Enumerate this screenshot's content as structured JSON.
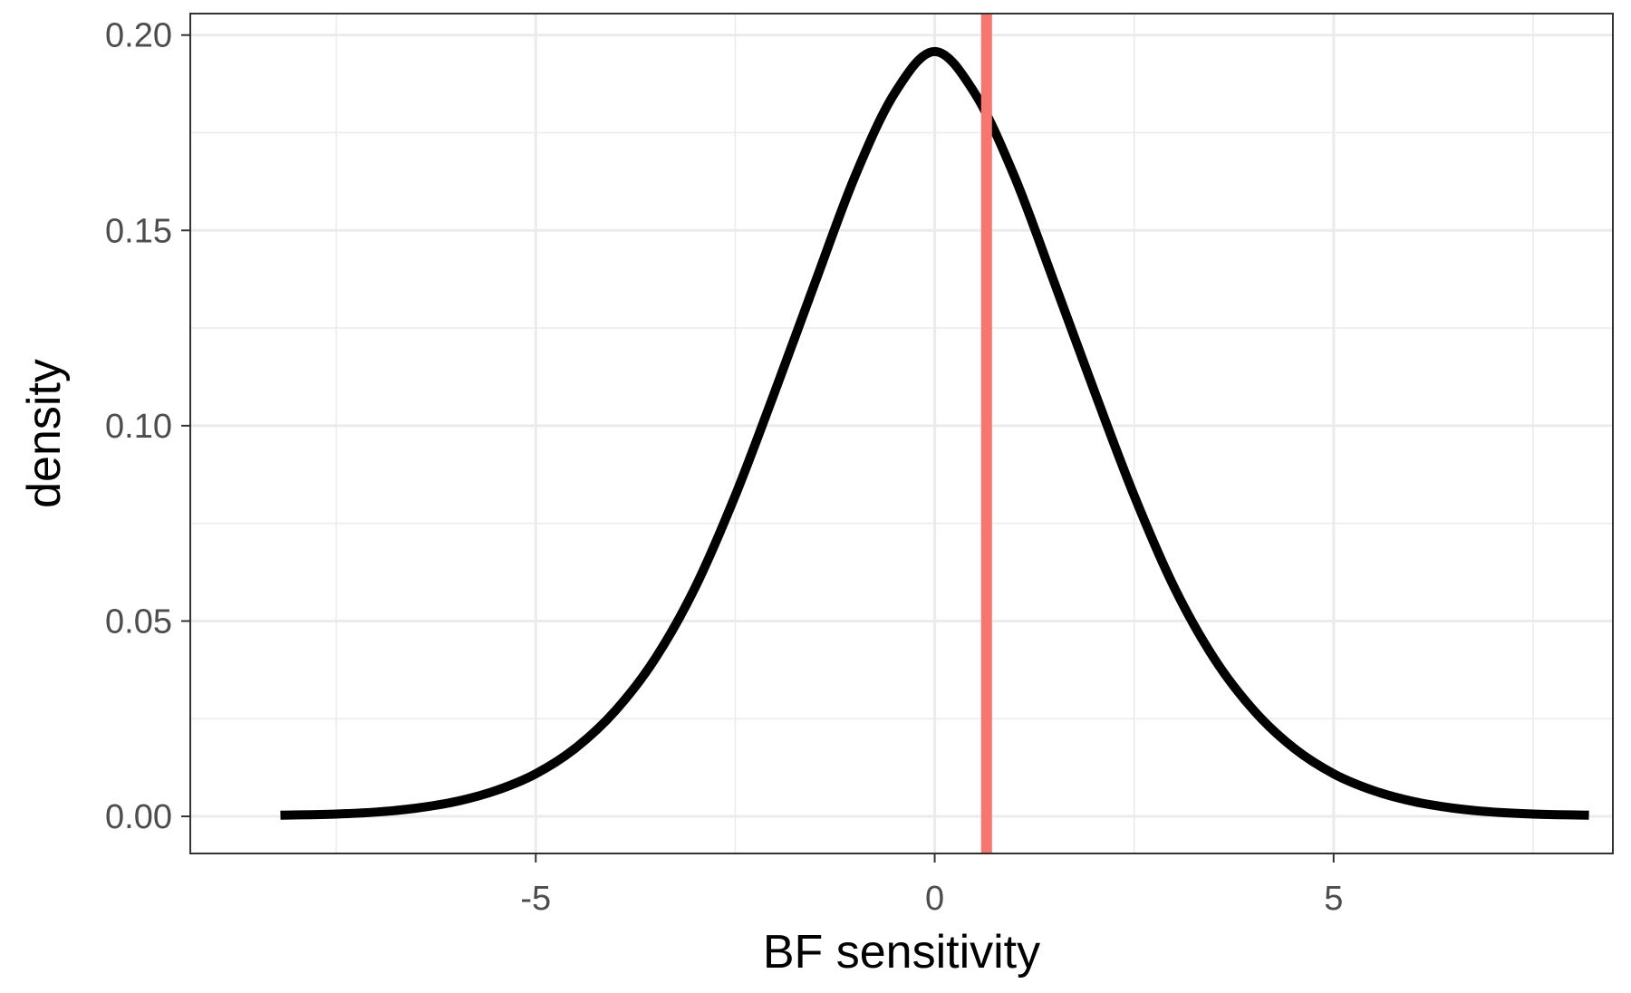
{
  "chart_data": {
    "type": "line",
    "title": "",
    "xlabel": "BF sensitivity",
    "ylabel": "density",
    "xlim": [
      -9.33,
      8.5
    ],
    "ylim": [
      -0.0095,
      0.2055
    ],
    "x_ticks": [
      -5,
      0,
      5
    ],
    "x_tick_labels": [
      "-5",
      "0",
      "5"
    ],
    "x_minor_grid": [
      -7.5,
      -2.5,
      2.5,
      7.5
    ],
    "y_ticks": [
      0,
      0.05,
      0.1,
      0.15,
      0.2
    ],
    "y_tick_labels": [
      "0.00",
      "0.05",
      "0.10",
      "0.15",
      "0.20"
    ],
    "y_minor_grid": [
      0.025,
      0.075,
      0.125,
      0.175
    ],
    "grid": true,
    "legend": "none",
    "series": [
      {
        "color": "#000000",
        "x": [
          -8.2,
          -7.5,
          -7.0,
          -6.5,
          -6.0,
          -5.5,
          -5.0,
          -4.5,
          -4.0,
          -3.5,
          -3.0,
          -2.5,
          -2.0,
          -1.5,
          -1.0,
          -0.5,
          0.0,
          0.5,
          1.0,
          1.5,
          2.0,
          2.5,
          3.0,
          3.5,
          4.0,
          4.5,
          5.0,
          5.5,
          6.0,
          6.5,
          7.0,
          7.5,
          8.2
        ],
        "y": [
          0.0003,
          0.0006,
          0.0011,
          0.0021,
          0.0038,
          0.0066,
          0.0109,
          0.0175,
          0.0271,
          0.0405,
          0.0587,
          0.0821,
          0.1089,
          0.1366,
          0.1638,
          0.1852,
          0.1958,
          0.1852,
          0.1638,
          0.1366,
          0.1089,
          0.0821,
          0.0587,
          0.0405,
          0.0271,
          0.0175,
          0.0109,
          0.0066,
          0.0038,
          0.0021,
          0.0011,
          0.0006,
          0.0003
        ]
      }
    ],
    "vline": {
      "x": 0.65,
      "color": "#F8766D"
    },
    "colors": {
      "background": "#FFFFFF",
      "grid": "#EBEBEB",
      "panel_border": "#333333",
      "tick_text": "#4D4D4D",
      "axis_title": "#000000"
    }
  }
}
